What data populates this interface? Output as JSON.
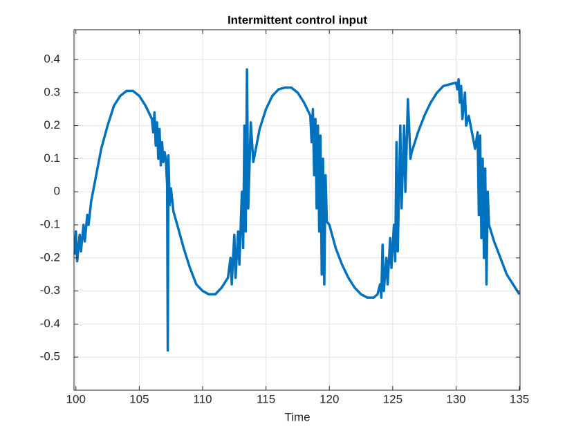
{
  "chart_data": {
    "type": "line",
    "title": "Intermittent control input",
    "x_label": "Time",
    "xlim": [
      99.85,
      135.05
    ],
    "ylim": [
      -0.6,
      0.49
    ],
    "xticks": [
      100,
      105,
      110,
      115,
      120,
      125,
      130,
      135
    ],
    "yticks": [
      -0.5,
      -0.4,
      -0.3,
      -0.2,
      -0.1,
      0,
      0.1,
      0.2,
      0.3,
      0.4
    ],
    "grid": true,
    "series": [
      {
        "color": "#0072bd",
        "x": [
          99.9,
          100,
          100.1,
          100.3,
          100.4,
          100.6,
          100.7,
          100.9,
          101.0,
          101.2,
          101.5,
          102,
          102.5,
          103,
          103.5,
          104,
          104.5,
          105,
          105.5,
          106,
          106.1,
          106.2,
          106.3,
          106.4,
          106.5,
          106.6,
          106.7,
          106.8,
          106.9,
          107.0,
          107.1,
          107.2,
          107.25,
          107.3,
          107.4,
          107.5,
          107.7,
          108,
          108.5,
          109,
          109.5,
          110,
          110.5,
          111,
          111.5,
          112,
          112.2,
          112.3,
          112.5,
          112.6,
          112.8,
          112.9,
          113.1,
          113.2,
          113.3,
          113.4,
          113.5,
          113.6,
          113.8,
          114,
          114.5,
          115,
          115.5,
          116,
          116.5,
          117,
          117.5,
          118,
          118.5,
          118.6,
          118.7,
          118.8,
          118.9,
          119.0,
          119.1,
          119.2,
          119.3,
          119.4,
          119.5,
          119.6,
          119.7,
          119.8,
          120,
          120.5,
          121,
          121.5,
          122,
          122.5,
          123,
          123.5,
          123.8,
          124,
          124.1,
          124.2,
          124.3,
          124.5,
          124.6,
          124.8,
          124.9,
          125.1,
          125.2,
          125.3,
          125.4,
          125.6,
          125.7,
          125.9,
          126,
          126.2,
          126.4,
          126.5,
          127,
          127.5,
          128,
          128.5,
          129,
          129.5,
          130,
          130.1,
          130.2,
          130.3,
          130.4,
          130.5,
          130.7,
          130.8,
          131,
          131.3,
          131.5,
          131.7,
          131.8,
          131.9,
          132,
          132.1,
          132.2,
          132.3,
          132.4,
          132.5,
          132.6,
          133,
          133.5,
          134,
          134.5,
          135
        ],
        "values": [
          -0.19,
          -0.12,
          -0.21,
          -0.13,
          -0.18,
          -0.1,
          -0.15,
          -0.07,
          -0.1,
          -0.03,
          0.03,
          0.13,
          0.2,
          0.26,
          0.29,
          0.305,
          0.305,
          0.29,
          0.26,
          0.22,
          0.18,
          0.24,
          0.14,
          0.21,
          0.1,
          0.19,
          0.08,
          0.15,
          0.09,
          0.12,
          0.1,
          0.02,
          -0.48,
          0.11,
          -0.04,
          0.01,
          -0.06,
          -0.1,
          -0.17,
          -0.23,
          -0.28,
          -0.3,
          -0.31,
          -0.31,
          -0.29,
          -0.26,
          -0.2,
          -0.28,
          -0.13,
          -0.26,
          -0.12,
          -0.22,
          0.0,
          -0.17,
          0.2,
          -0.12,
          0.37,
          -0.05,
          0.21,
          0.09,
          0.19,
          0.25,
          0.29,
          0.31,
          0.315,
          0.315,
          0.3,
          0.27,
          0.23,
          0.15,
          0.25,
          0.05,
          0.22,
          -0.05,
          0.2,
          -0.12,
          0.17,
          -0.25,
          0.1,
          -0.28,
          0.05,
          -0.09,
          -0.1,
          -0.17,
          -0.22,
          -0.26,
          -0.29,
          -0.31,
          -0.32,
          -0.32,
          -0.31,
          -0.28,
          -0.32,
          -0.16,
          -0.3,
          -0.2,
          -0.28,
          -0.14,
          -0.23,
          -0.1,
          -0.21,
          0.15,
          -0.18,
          0.2,
          -0.05,
          0.2,
          0.0,
          0.28,
          0.1,
          0.12,
          0.18,
          0.23,
          0.27,
          0.3,
          0.32,
          0.325,
          0.33,
          0.31,
          0.34,
          0.27,
          0.32,
          0.22,
          0.3,
          0.2,
          0.23,
          0.17,
          0.13,
          0.18,
          -0.07,
          0.17,
          -0.14,
          0.1,
          -0.2,
          0.07,
          -0.28,
          0.0,
          -0.1,
          -0.15,
          -0.2,
          -0.25,
          -0.28,
          -0.31
        ]
      }
    ]
  }
}
